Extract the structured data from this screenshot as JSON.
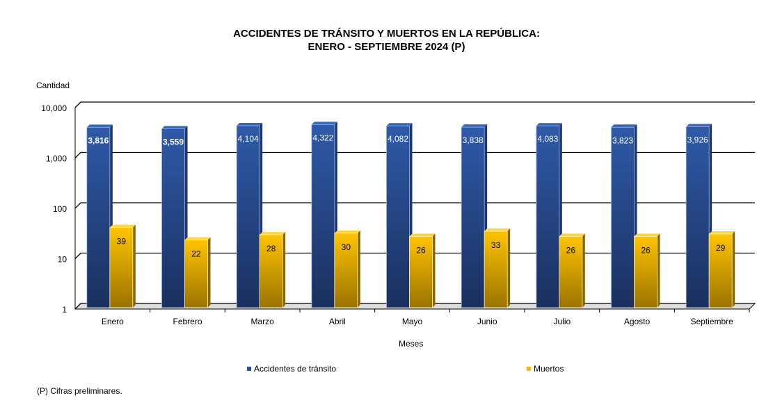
{
  "chart_data": {
    "type": "bar",
    "title": "ACCIDENTES DE TRÁNSITO Y MUERTOS EN LA REPÚBLICA:",
    "subtitle": "ENERO - SEPTIEMBRE 2024 (P)",
    "xlabel": "Meses",
    "ylabel": "Cantidad",
    "yscale": "log",
    "ylim": [
      1,
      10000
    ],
    "yticks": [
      1,
      10,
      100,
      1000,
      10000
    ],
    "ytick_labels": [
      "1",
      "10",
      "100",
      "1,000",
      "10,000"
    ],
    "grid": true,
    "legend_position": "bottom",
    "categories": [
      "Enero",
      "Febrero",
      "Marzo",
      "Abril",
      "Mayo",
      "Junio",
      "Julio",
      "Agosto",
      "Septiembre"
    ],
    "series": [
      {
        "name": "Accidentes de tránsito",
        "color": "#2a4f9a",
        "values": [
          3816,
          3559,
          4104,
          4322,
          4082,
          3838,
          4083,
          3823,
          3926
        ],
        "labels": [
          "3,816",
          "3,559",
          "4,104",
          "4,322",
          "4,082",
          "3,838",
          "4,083",
          "3,823",
          "3,926"
        ]
      },
      {
        "name": "Muertos",
        "color": "#f5b800",
        "values": [
          39,
          22,
          28,
          30,
          26,
          33,
          26,
          26,
          29
        ],
        "labels": [
          "39",
          "22",
          "28",
          "30",
          "26",
          "33",
          "26",
          "26",
          "29"
        ]
      }
    ],
    "footnote": "(P) Cifras  preliminares."
  }
}
